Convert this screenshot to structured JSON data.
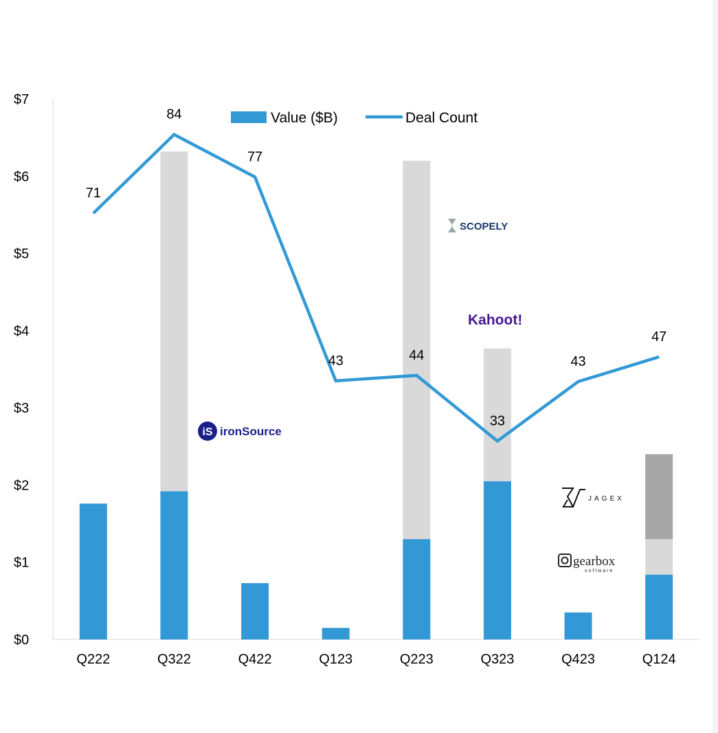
{
  "chart_data": {
    "type": "bar",
    "categories": [
      "Q222",
      "Q322",
      "Q422",
      "Q123",
      "Q223",
      "Q323",
      "Q423",
      "Q124"
    ],
    "series": [
      {
        "name": "Value ($B)",
        "kind": "stacked-bar",
        "values": [
          1.76,
          1.92,
          0.73,
          0.15,
          1.3,
          2.05,
          0.35,
          0.84
        ],
        "color": "#3399d6"
      },
      {
        "name": "",
        "kind": "stacked-bar",
        "values": [
          0,
          4.4,
          0,
          0,
          4.9,
          1.72,
          0,
          0.46
        ],
        "color": "#d9d9d9"
      },
      {
        "name": "",
        "kind": "stacked-bar",
        "values": [
          0,
          0,
          0,
          0,
          0,
          0,
          0,
          1.1
        ],
        "color": "#a6a6a6"
      },
      {
        "name": "Deal Count",
        "kind": "line",
        "values": [
          71,
          84,
          77,
          43,
          44,
          33,
          43,
          47
        ],
        "plot_values": [
          5.52,
          6.54,
          5.99,
          3.35,
          3.42,
          2.57,
          3.34,
          3.66
        ],
        "color": "#3399d6"
      }
    ],
    "y_tick_labels": [
      "$0",
      "$1",
      "$2",
      "$3",
      "$4",
      "$5",
      "$6",
      "$7"
    ],
    "ylim": [
      0,
      7
    ],
    "grid": false,
    "legend_position": "top-center",
    "title": "",
    "xlabel": "",
    "ylabel": ""
  },
  "logos": [
    {
      "name": "ironsource",
      "text": "ironSource",
      "mark": "iS",
      "category": "Q322",
      "color": "#1a1f8a"
    },
    {
      "name": "scopely",
      "text": "SCOPELY",
      "category": "Q223",
      "color": "#1b3a6b"
    },
    {
      "name": "kahoot",
      "text": "Kahoot!",
      "category": "Q323",
      "color": "#46178f"
    },
    {
      "name": "jagex",
      "text": "JAGEX",
      "category": "Q124",
      "color": "#111111"
    },
    {
      "name": "gearbox",
      "text": "gearbox",
      "subtext": "software",
      "category": "Q124",
      "color": "#222222"
    }
  ]
}
